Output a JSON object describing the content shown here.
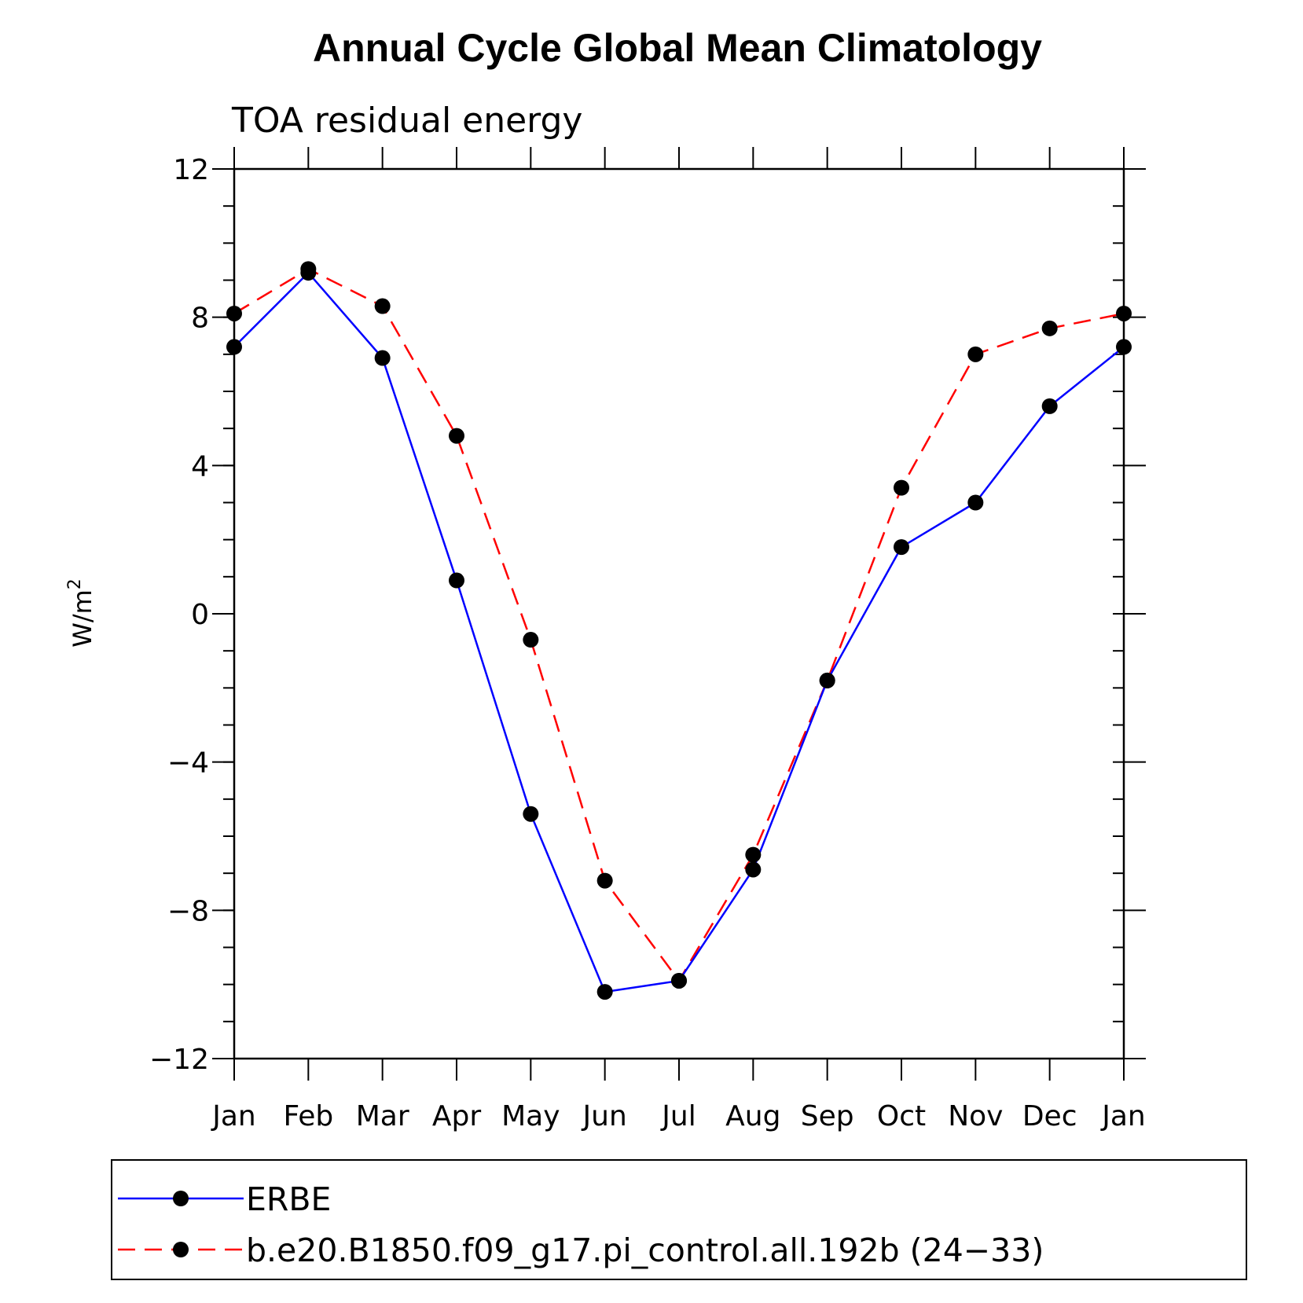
{
  "chart_data": {
    "type": "line",
    "title": "Annual Cycle Global Mean Climatology",
    "subtitle": "TOA residual energy",
    "ylabel": "W/m",
    "ylabel_superscript": "2",
    "ylim": [
      -12,
      12
    ],
    "y_major_ticks": [
      12,
      8,
      4,
      0,
      -4,
      -8,
      -12
    ],
    "y_tick_labels": [
      "12",
      "8",
      "4",
      "0",
      "−4",
      "−8",
      "−12"
    ],
    "y_minor_step": 1,
    "categories": [
      "Jan",
      "Feb",
      "Mar",
      "Apr",
      "May",
      "Jun",
      "Jul",
      "Aug",
      "Sep",
      "Oct",
      "Nov",
      "Dec",
      "Jan"
    ],
    "legend_position": "bottom",
    "series": [
      {
        "name": "ERBE",
        "color": "#0000ff",
        "dash": "solid",
        "marker": "filled-circle",
        "values": [
          7.2,
          9.2,
          6.9,
          0.9,
          -5.4,
          -10.2,
          -9.9,
          -6.9,
          -1.8,
          1.8,
          3.0,
          5.6,
          7.2
        ]
      },
      {
        "name": "b.e20.B1850.f09_g17.pi_control.all.192b (24−33)",
        "color": "#ff0000",
        "dash": "dashed",
        "marker": "filled-circle",
        "values": [
          8.1,
          9.3,
          8.3,
          4.8,
          -0.7,
          -7.2,
          -9.9,
          -6.5,
          -1.8,
          3.4,
          7.0,
          7.7,
          8.1
        ]
      }
    ]
  }
}
